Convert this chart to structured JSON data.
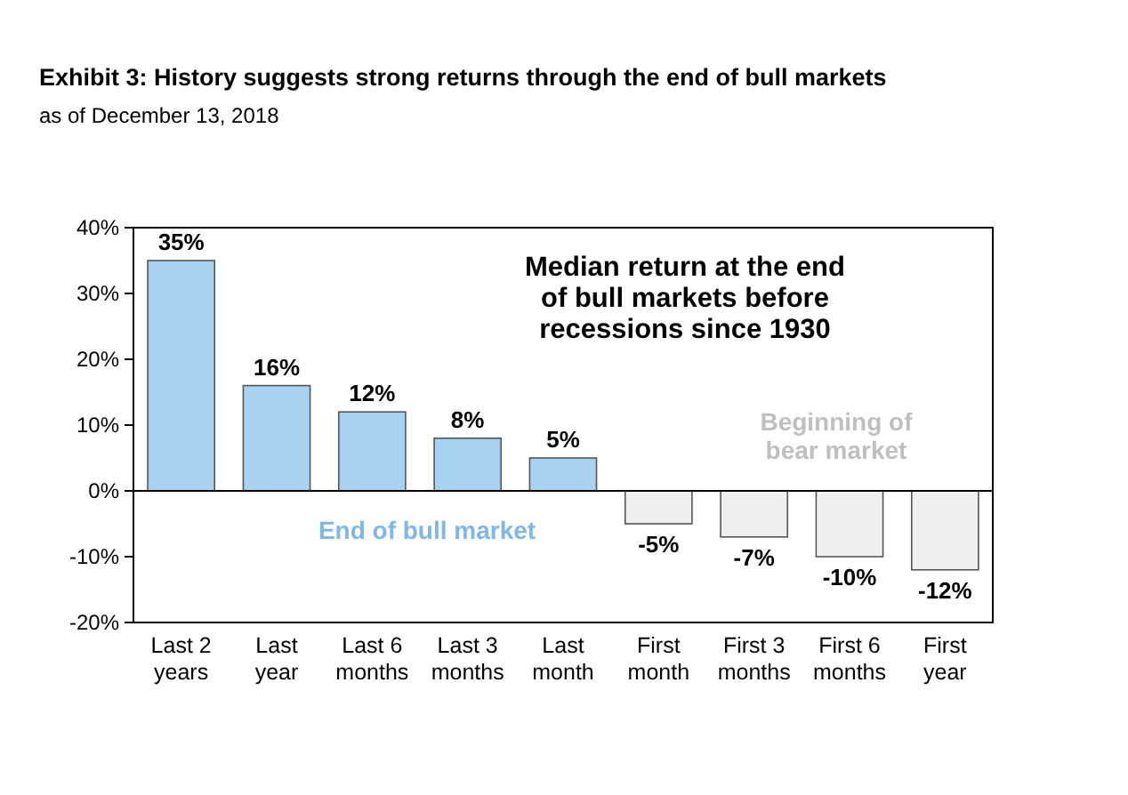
{
  "chart_data": {
    "type": "bar",
    "title": "Exhibit 3: History suggests strong returns through the end of bull markets",
    "subtitle": "as of December 13, 2018",
    "categories": [
      "Last 2 years",
      "Last year",
      "Last 6 months",
      "Last 3 months",
      "Last month",
      "First month",
      "First 3 months",
      "First 6 months",
      "First year"
    ],
    "values": [
      35,
      16,
      12,
      8,
      5,
      -5,
      -7,
      -10,
      -12
    ],
    "value_labels": [
      "35%",
      "16%",
      "12%",
      "8%",
      "5%",
      "-5%",
      "-7%",
      "-10%",
      "-12%"
    ],
    "colors": [
      "#a9d1f0",
      "#a9d1f0",
      "#a9d1f0",
      "#a9d1f0",
      "#a9d1f0",
      "#efefef",
      "#efefef",
      "#efefef",
      "#efefef"
    ],
    "ylim": [
      -20,
      40
    ],
    "yticks": [
      {
        "value": -20,
        "label": "-20%"
      },
      {
        "value": -10,
        "label": "-10%"
      },
      {
        "value": 0,
        "label": "0%"
      },
      {
        "value": 10,
        "label": "10%"
      },
      {
        "value": 20,
        "label": "20%"
      },
      {
        "value": 30,
        "label": "30%"
      },
      {
        "value": 40,
        "label": "40%"
      }
    ],
    "annotations": [
      "Median return at the end of bull markets before recessions since 1930",
      "End of bull market",
      "Beginning of bear market"
    ]
  }
}
